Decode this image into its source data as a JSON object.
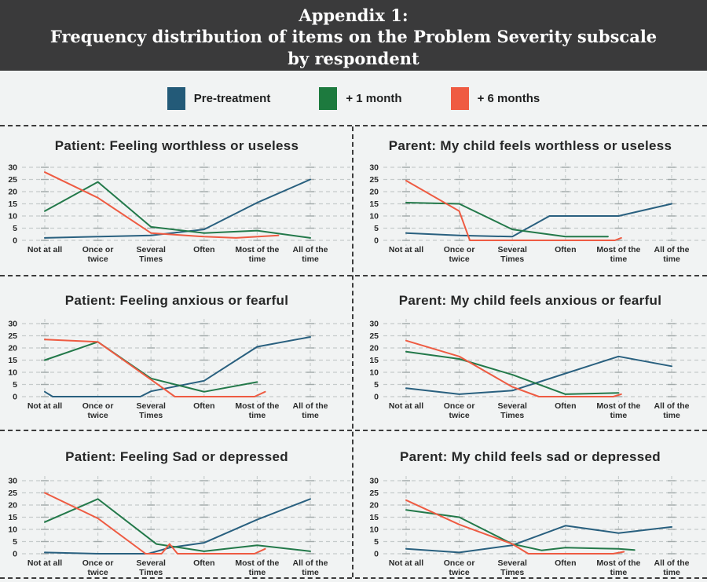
{
  "header": {
    "line1": "Appendix 1:",
    "line2": "Frequency distribution of items on the Problem Severity subscale",
    "line3": "by respondent",
    "background": "#3a3a3b",
    "text_color": "#ffffff"
  },
  "legend": {
    "position": "top",
    "items": [
      {
        "label": "Pre-treatment",
        "color": "#235a78"
      },
      {
        "label": "+ 1 month",
        "color": "#1d7a3e"
      },
      {
        "label": "+ 6 months",
        "color": "#ef5b42"
      }
    ]
  },
  "chart_data": [
    {
      "type": "line",
      "title": "Patient: Feeling worthless or useless",
      "respondent": "Patient",
      "categories": [
        [
          "Not at all"
        ],
        [
          "Once or",
          "twice"
        ],
        [
          "Several",
          "Times"
        ],
        [
          "Often"
        ],
        [
          "Most of the",
          "time"
        ],
        [
          "All of the",
          "time"
        ]
      ],
      "ylim": [
        0,
        30
      ],
      "yticks": [
        0,
        5,
        10,
        15,
        20,
        25,
        30
      ],
      "grid": "dashed",
      "series": [
        {
          "name": "Pre-treatment",
          "color": "#29607f",
          "points": [
            [
              0,
              1
            ],
            [
              1,
              1.5
            ],
            [
              2,
              2
            ],
            [
              3,
              4.5
            ],
            [
              4,
              15.5
            ],
            [
              5,
              25
            ]
          ]
        },
        {
          "name": "+ 1 month",
          "color": "#23794a",
          "points": [
            [
              0,
              12
            ],
            [
              1,
              24
            ],
            [
              2,
              5.5
            ],
            [
              3,
              3
            ],
            [
              4,
              4
            ],
            [
              5,
              1
            ]
          ]
        },
        {
          "name": "+ 6 months",
          "color": "#ee5b42",
          "points": [
            [
              0,
              28
            ],
            [
              1,
              17.5
            ],
            [
              2,
              3
            ],
            [
              3,
              1.5
            ],
            [
              3.6,
              1
            ],
            [
              4.4,
              2
            ]
          ]
        }
      ]
    },
    {
      "type": "line",
      "title": "Parent: My child feels worthless or useless",
      "respondent": "Parent",
      "categories": [
        [
          "Not at all"
        ],
        [
          "Once or",
          "twice"
        ],
        [
          "Several",
          "Times"
        ],
        [
          "Often"
        ],
        [
          "Most of the",
          "time"
        ],
        [
          "All of the",
          "time"
        ]
      ],
      "ylim": [
        0,
        30
      ],
      "yticks": [
        0,
        5,
        10,
        15,
        20,
        25,
        30
      ],
      "grid": "dashed",
      "series": [
        {
          "name": "Pre-treatment",
          "color": "#29607f",
          "points": [
            [
              0,
              3
            ],
            [
              1,
              2
            ],
            [
              2,
              1.5
            ],
            [
              2.7,
              10
            ],
            [
              4,
              10
            ],
            [
              5,
              15
            ]
          ]
        },
        {
          "name": "+ 1 month",
          "color": "#23794a",
          "points": [
            [
              0,
              15.5
            ],
            [
              1,
              15
            ],
            [
              2,
              4.5
            ],
            [
              3,
              1.5
            ],
            [
              3.8,
              1.5
            ]
          ]
        },
        {
          "name": "+ 6 months",
          "color": "#ee5b42",
          "points": [
            [
              0,
              24.5
            ],
            [
              1,
              12
            ],
            [
              1.2,
              0
            ],
            [
              3.93,
              0
            ],
            [
              4.05,
              1
            ]
          ]
        }
      ]
    },
    {
      "type": "line",
      "title": "Patient: Feeling anxious or fearful",
      "respondent": "Patient",
      "categories": [
        [
          "Not at all"
        ],
        [
          "Once or",
          "twice"
        ],
        [
          "Several",
          "Times"
        ],
        [
          "Often"
        ],
        [
          "Most of the",
          "time"
        ],
        [
          "All of the",
          "time"
        ]
      ],
      "ylim": [
        0,
        30
      ],
      "yticks": [
        0,
        5,
        10,
        15,
        20,
        25,
        30
      ],
      "grid": "dashed",
      "series": [
        {
          "name": "Pre-treatment",
          "color": "#29607f",
          "points": [
            [
              0,
              2
            ],
            [
              0.15,
              0
            ],
            [
              1.8,
              0
            ],
            [
              2,
              2.2
            ],
            [
              3,
              6.5
            ],
            [
              4,
              20.5
            ],
            [
              5,
              24.5
            ]
          ]
        },
        {
          "name": "+ 1 month",
          "color": "#23794a",
          "points": [
            [
              0,
              15
            ],
            [
              1,
              22.5
            ],
            [
              2,
              7.5
            ],
            [
              3,
              2
            ],
            [
              4,
              6
            ]
          ]
        },
        {
          "name": "+ 6 months",
          "color": "#ee5b42",
          "points": [
            [
              0,
              23.5
            ],
            [
              1,
              22.5
            ],
            [
              2,
              7
            ],
            [
              2.45,
              0
            ],
            [
              3.95,
              0
            ],
            [
              4.15,
              2
            ]
          ]
        }
      ]
    },
    {
      "type": "line",
      "title": "Parent: My child feels anxious or fearful",
      "respondent": "Parent",
      "categories": [
        [
          "Not at all"
        ],
        [
          "Once or",
          "twice"
        ],
        [
          "Several",
          "Times"
        ],
        [
          "Often"
        ],
        [
          "Most of the",
          "time"
        ],
        [
          "All of the",
          "time"
        ]
      ],
      "ylim": [
        0,
        30
      ],
      "yticks": [
        0,
        5,
        10,
        15,
        20,
        25,
        30
      ],
      "grid": "dashed",
      "series": [
        {
          "name": "Pre-treatment",
          "color": "#29607f",
          "points": [
            [
              0,
              3.5
            ],
            [
              1,
              1
            ],
            [
              2,
              2.5
            ],
            [
              3,
              9.5
            ],
            [
              4,
              16.5
            ],
            [
              5,
              12.5
            ]
          ]
        },
        {
          "name": "+ 1 month",
          "color": "#23794a",
          "points": [
            [
              0,
              18.5
            ],
            [
              1,
              15.5
            ],
            [
              2,
              9
            ],
            [
              3,
              1
            ],
            [
              4,
              1.5
            ]
          ]
        },
        {
          "name": "+ 6 months",
          "color": "#ee5b42",
          "points": [
            [
              0,
              23
            ],
            [
              1,
              16.5
            ],
            [
              2,
              4
            ],
            [
              2.5,
              0
            ],
            [
              3.9,
              0
            ],
            [
              4.05,
              1
            ]
          ]
        }
      ]
    },
    {
      "type": "line",
      "title": "Patient: Feeling Sad or depressed",
      "respondent": "Patient",
      "categories": [
        [
          "Not at all"
        ],
        [
          "Once or",
          "twice"
        ],
        [
          "Several",
          "Times"
        ],
        [
          "Often"
        ],
        [
          "Most of the",
          "time"
        ],
        [
          "All of the",
          "time"
        ]
      ],
      "ylim": [
        0,
        30
      ],
      "yticks": [
        0,
        5,
        10,
        15,
        20,
        25,
        30
      ],
      "grid": "dashed",
      "series": [
        {
          "name": "Pre-treatment",
          "color": "#29607f",
          "points": [
            [
              0,
              0.5
            ],
            [
              1,
              0
            ],
            [
              1.95,
              0
            ],
            [
              2.35,
              2.5
            ],
            [
              3,
              4.5
            ],
            [
              4,
              14
            ],
            [
              5,
              22.5
            ]
          ]
        },
        {
          "name": "+ 1 month",
          "color": "#23794a",
          "points": [
            [
              0,
              13
            ],
            [
              1,
              22.5
            ],
            [
              2.1,
              4
            ],
            [
              3,
              1
            ],
            [
              4,
              3.5
            ],
            [
              5,
              1
            ]
          ]
        },
        {
          "name": "+ 6 months",
          "color": "#ee5b42",
          "points": [
            [
              0,
              25
            ],
            [
              1,
              14.5
            ],
            [
              1.9,
              0
            ],
            [
              2.2,
              0
            ],
            [
              2.35,
              4
            ],
            [
              2.5,
              0
            ],
            [
              3.95,
              0
            ],
            [
              4.15,
              2
            ]
          ]
        }
      ]
    },
    {
      "type": "line",
      "title": "Parent: My child feels sad or depressed",
      "respondent": "Parent",
      "categories": [
        [
          "Not at all"
        ],
        [
          "Once or",
          "twice"
        ],
        [
          "Several",
          "Times"
        ],
        [
          "Often"
        ],
        [
          "Most of the",
          "time"
        ],
        [
          "All of the",
          "time"
        ]
      ],
      "ylim": [
        0,
        30
      ],
      "yticks": [
        0,
        5,
        10,
        15,
        20,
        25,
        30
      ],
      "grid": "dashed",
      "series": [
        {
          "name": "Pre-treatment",
          "color": "#29607f",
          "points": [
            [
              0,
              2
            ],
            [
              1,
              0.5
            ],
            [
              2,
              3.5
            ],
            [
              3,
              11.5
            ],
            [
              4,
              8.5
            ],
            [
              5,
              11
            ]
          ]
        },
        {
          "name": "+ 1 month",
          "color": "#23794a",
          "points": [
            [
              0,
              18
            ],
            [
              1,
              15
            ],
            [
              2,
              4
            ],
            [
              2.55,
              1.4
            ],
            [
              3,
              2.5
            ],
            [
              4,
              2
            ],
            [
              4.3,
              1.5
            ]
          ]
        },
        {
          "name": "+ 6 months",
          "color": "#ee5b42",
          "points": [
            [
              0,
              22
            ],
            [
              1,
              12
            ],
            [
              2,
              4
            ],
            [
              2.3,
              0
            ],
            [
              3.9,
              0
            ],
            [
              4.1,
              0.8
            ]
          ]
        }
      ]
    }
  ]
}
